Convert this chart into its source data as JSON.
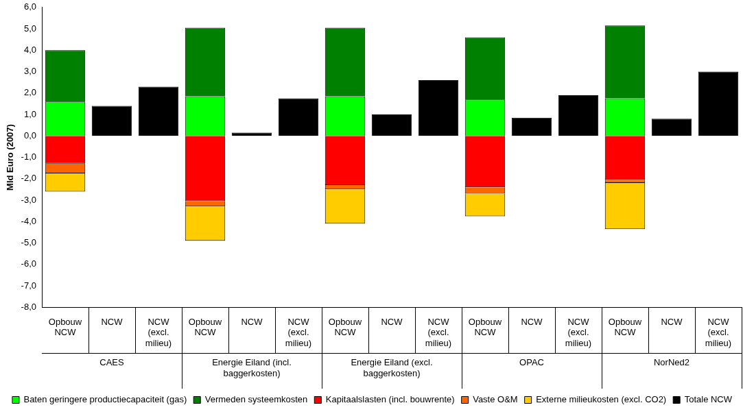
{
  "chart_data": {
    "type": "bar",
    "stacked": true,
    "ylabel": "Mld Euro (2007)",
    "categories": [
      "Opbouw NCW",
      "NCW",
      "NCW (excl. milieu)",
      "Opbouw NCW",
      "NCW",
      "NCW (excl. milieu)",
      "Opbouw NCW",
      "NCW",
      "NCW (excl. milieu)",
      "Opbouw NCW",
      "NCW",
      "NCW (excl. milieu)",
      "Opbouw NCW",
      "NCW",
      "NCW (excl. milieu)"
    ],
    "annotations": [
      "CAES",
      "Energie Eiland (incl. baggerkosten)",
      "Energie Eiland (excl. baggerkosten)",
      "OPAC",
      "NorNed2"
    ],
    "series": [
      {
        "name": "Baten geringere productiecapaciteit (gas)",
        "color": "#00ff00",
        "values": [
          1.6,
          null,
          null,
          1.85,
          null,
          null,
          1.85,
          null,
          null,
          1.7,
          null,
          null,
          1.75,
          null,
          null
        ]
      },
      {
        "name": "Vermeden systeemkosten",
        "color": "#008000",
        "values": [
          2.4,
          null,
          null,
          3.2,
          null,
          null,
          3.2,
          null,
          null,
          2.9,
          null,
          null,
          3.4,
          null,
          null
        ]
      },
      {
        "name": "Kapitaalslasten (incl. bouwrente)",
        "color": "#ff0000",
        "values": [
          -1.3,
          null,
          null,
          -3.05,
          null,
          null,
          -2.3,
          null,
          null,
          -2.4,
          null,
          null,
          -2.05,
          null,
          null
        ]
      },
      {
        "name": "Vaste O&M",
        "color": "#ff6600",
        "values": [
          -0.45,
          null,
          null,
          -0.25,
          null,
          null,
          -0.2,
          null,
          null,
          -0.3,
          null,
          null,
          -0.15,
          null,
          null
        ]
      },
      {
        "name": "Externe milieukosten (excl. CO2)",
        "color": "#ffcc00",
        "values": [
          -0.85,
          null,
          null,
          -1.6,
          null,
          null,
          -1.6,
          null,
          null,
          -1.05,
          null,
          null,
          -2.15,
          null,
          null
        ]
      },
      {
        "name": "Totale NCW",
        "color": "#000000",
        "values": [
          null,
          1.4,
          2.3,
          null,
          0.15,
          1.75,
          null,
          1.0,
          2.6,
          null,
          0.85,
          1.9,
          null,
          0.8,
          3.0
        ]
      }
    ],
    "ylim": [
      -8,
      6
    ],
    "yticks": [
      {
        "value": -8,
        "label": "-8,0"
      },
      {
        "value": -7,
        "label": "-7,0"
      },
      {
        "value": -6,
        "label": "-6,0"
      },
      {
        "value": -5,
        "label": "-5,0"
      },
      {
        "value": -4,
        "label": "-4,0"
      },
      {
        "value": -3,
        "label": "-3,0"
      },
      {
        "value": -2,
        "label": "-2,0"
      },
      {
        "value": -1,
        "label": "-1,0"
      },
      {
        "value": 0,
        "label": "0,0"
      },
      {
        "value": 1,
        "label": "1,0"
      },
      {
        "value": 2,
        "label": "2,0"
      },
      {
        "value": 3,
        "label": "3,0"
      },
      {
        "value": 4,
        "label": "4,0"
      },
      {
        "value": 5,
        "label": "5,0"
      },
      {
        "value": 6,
        "label": "6,0"
      }
    ],
    "grid": false,
    "legend": "bottom"
  }
}
